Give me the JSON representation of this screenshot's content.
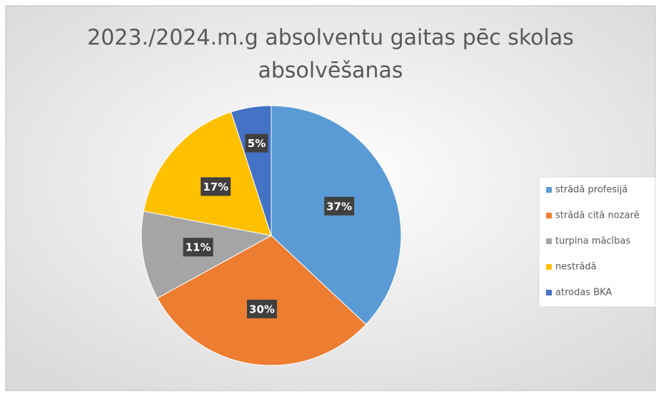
{
  "chart_data": {
    "type": "pie",
    "title": [
      "2023./2024.m.g  absolventu gaitas pēc skolas",
      "absolvēšanas"
    ],
    "categories": [
      "strādā profesijā",
      "strādā citā nozarē",
      "turpina mācības",
      "nestrādā",
      "atrodas BKA"
    ],
    "values": [
      37,
      30,
      11,
      17,
      5
    ],
    "value_labels": [
      "37%",
      "30%",
      "11%",
      "17%",
      "5%"
    ],
    "colors": [
      "#5b9bd5",
      "#ed7d31",
      "#a5a5a5",
      "#ffc000",
      "#4472c4"
    ],
    "legend": "right"
  }
}
